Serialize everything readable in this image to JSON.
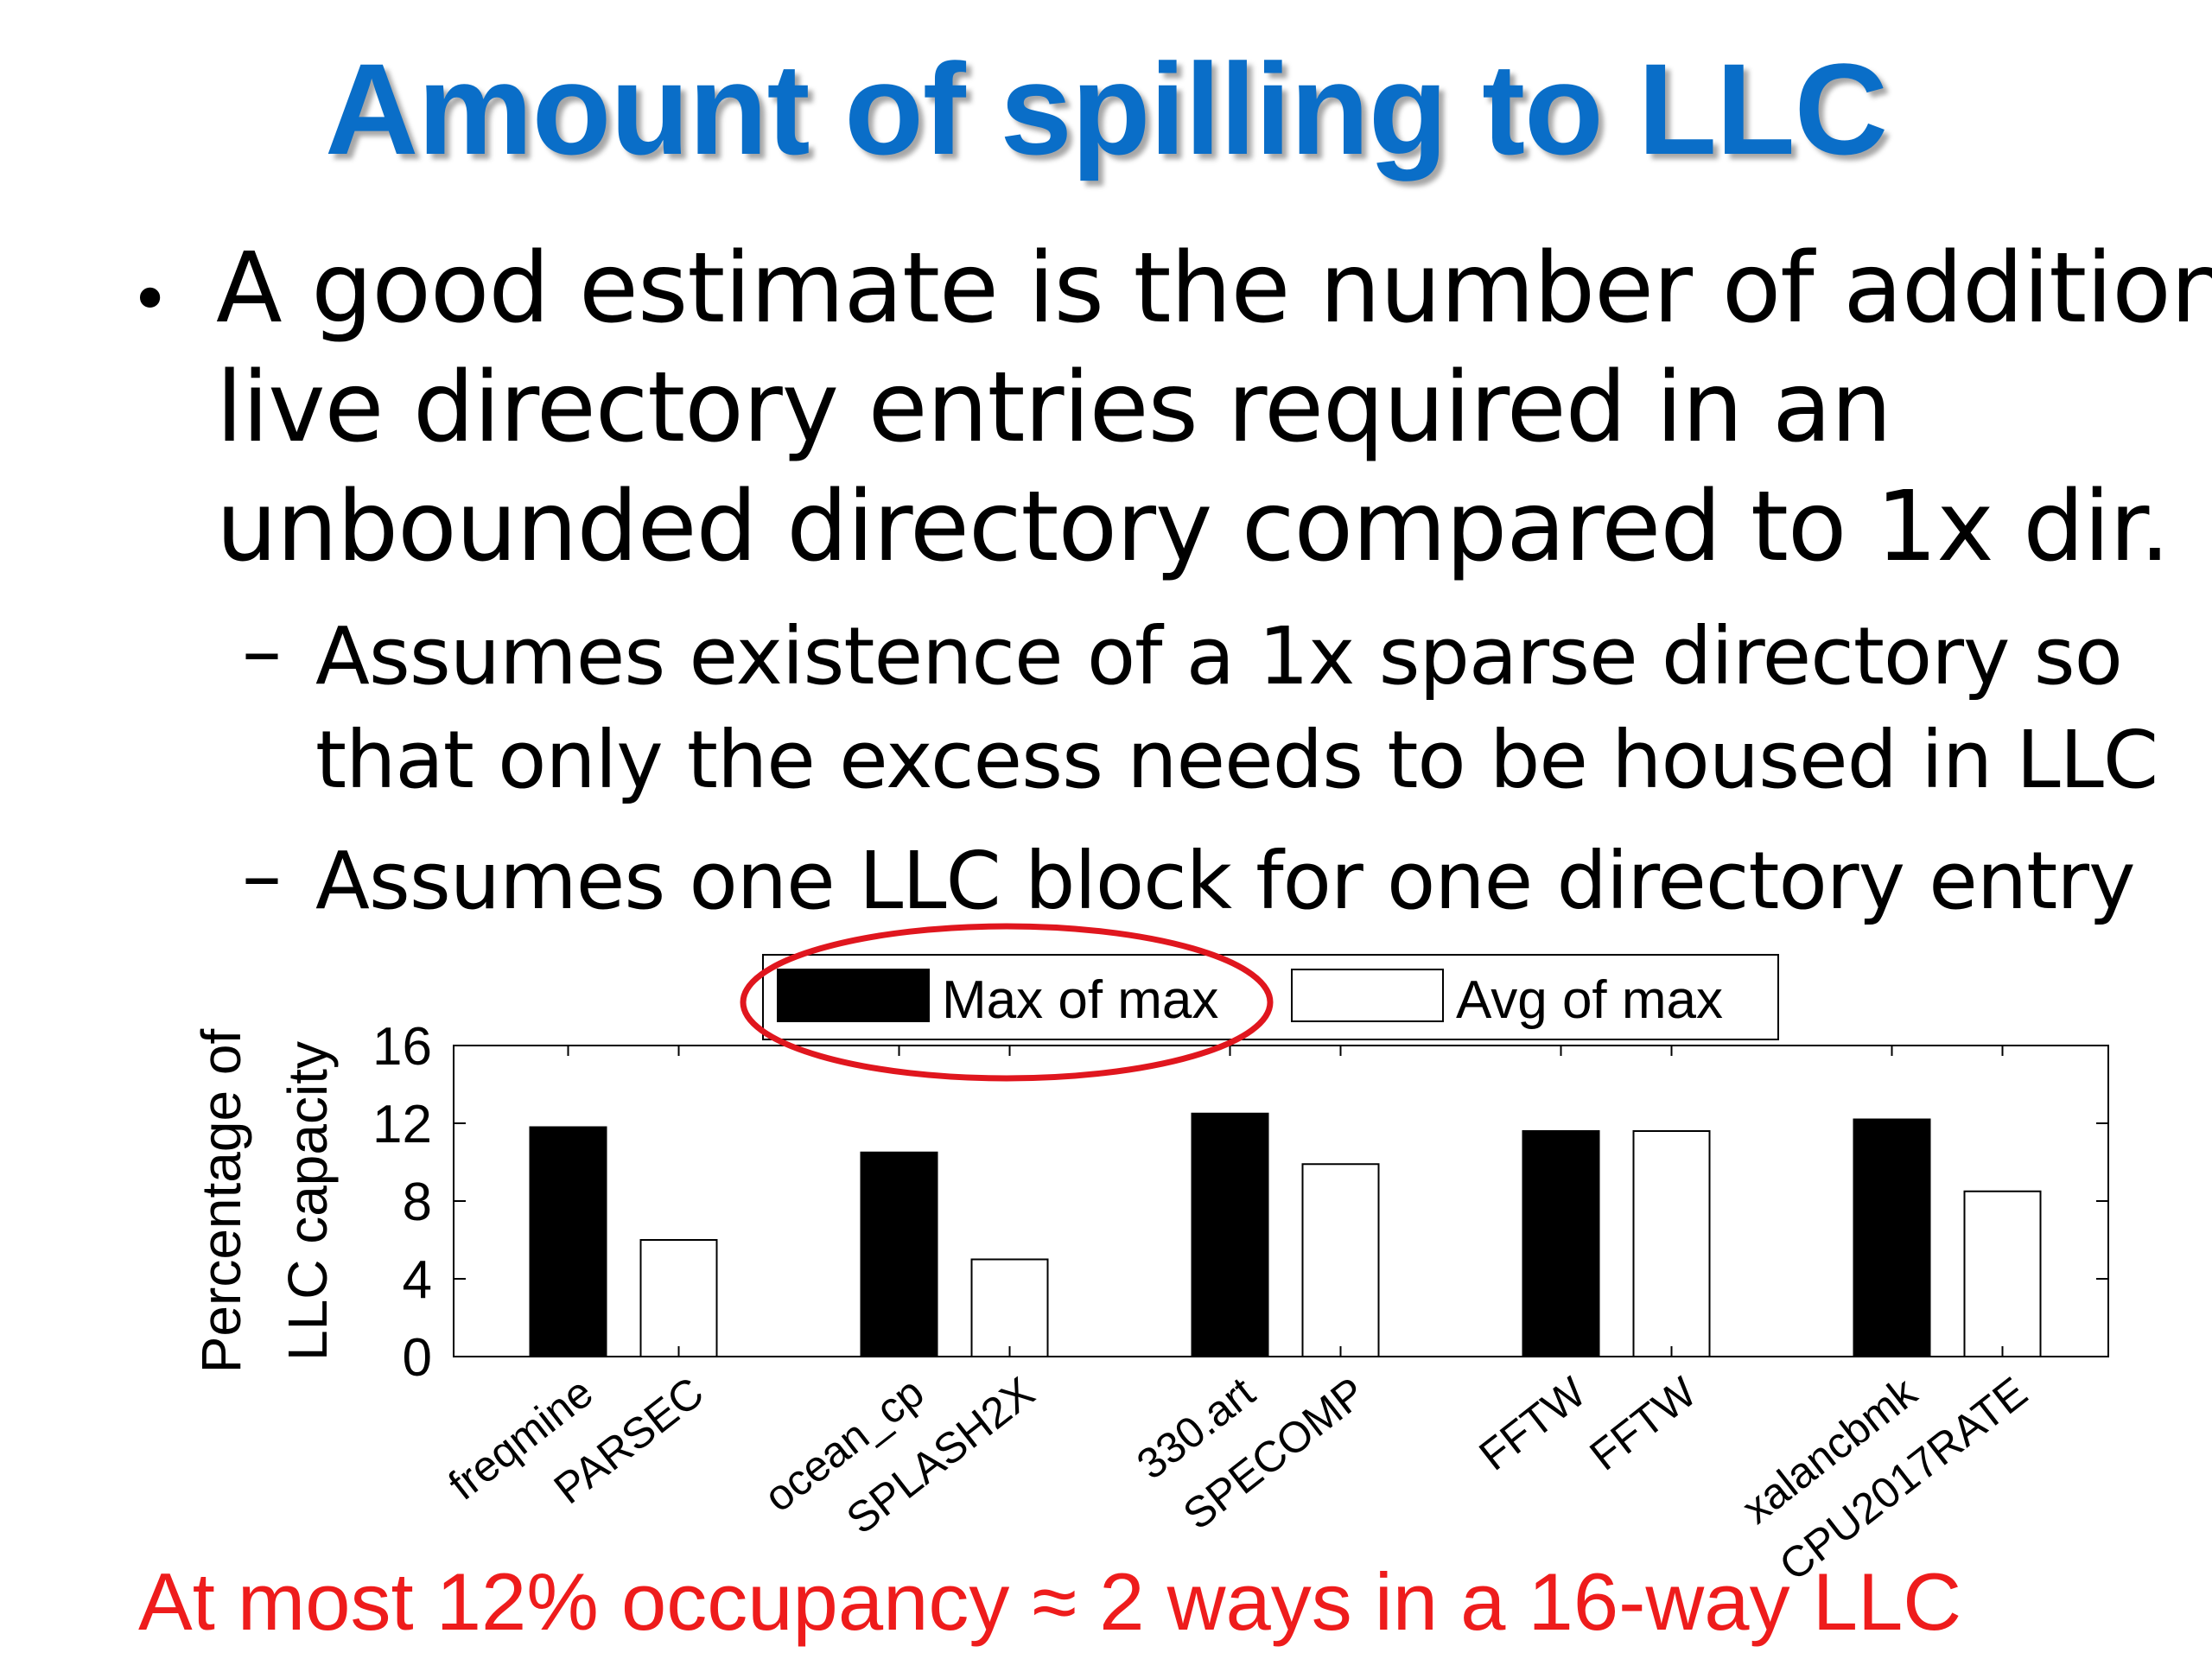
{
  "slide": {
    "title": "Amount of spilling to LLC",
    "bullet_lines": [
      "A good estimate is the number of additional",
      "live directory entries required in an",
      "unbounded directory compared to 1x dir."
    ],
    "sub_bullets": [
      {
        "dash": "–",
        "lines": [
          "Assumes existence of a 1x sparse directory so",
          "that only the excess needs to be housed in LLC"
        ]
      },
      {
        "dash": "–",
        "lines": [
          "Assumes one LLC block for one directory entry"
        ]
      }
    ],
    "conclusion": "At most 12% occupancy ≈ 2 ways in a 16-way LLC",
    "conclusion_color": "#ee1c1c",
    "title_color": "#0a6ec8",
    "highlight_color": "#e0161e"
  },
  "chart_data": {
    "type": "bar",
    "ylabel_lines": [
      "Percentage of",
      "LLC capacity"
    ],
    "ylim": [
      0,
      16
    ],
    "yticks": [
      "0",
      "4",
      "8",
      "12",
      "16"
    ],
    "legend_position": "top-center",
    "grid": false,
    "series": [
      {
        "name": "Max of max",
        "fill": "#000000"
      },
      {
        "name": "Avg of max",
        "fill": "#ffffff"
      }
    ],
    "groups": [
      {
        "max_of_max": 11.8,
        "avg_of_max": 6.0,
        "labels": [
          "freqmine",
          "PARSEC"
        ]
      },
      {
        "max_of_max": 10.5,
        "avg_of_max": 5.0,
        "labels": [
          "ocean_cp",
          "SPLASH2X"
        ]
      },
      {
        "max_of_max": 12.5,
        "avg_of_max": 9.9,
        "labels": [
          "330.art",
          "SPECOMP"
        ]
      },
      {
        "max_of_max": 11.6,
        "avg_of_max": 11.6,
        "labels": [
          "FFTW",
          "FFTW"
        ]
      },
      {
        "max_of_max": 12.2,
        "avg_of_max": 8.5,
        "labels": [
          "xalancbmk",
          "CPU2017RATE"
        ]
      }
    ]
  }
}
